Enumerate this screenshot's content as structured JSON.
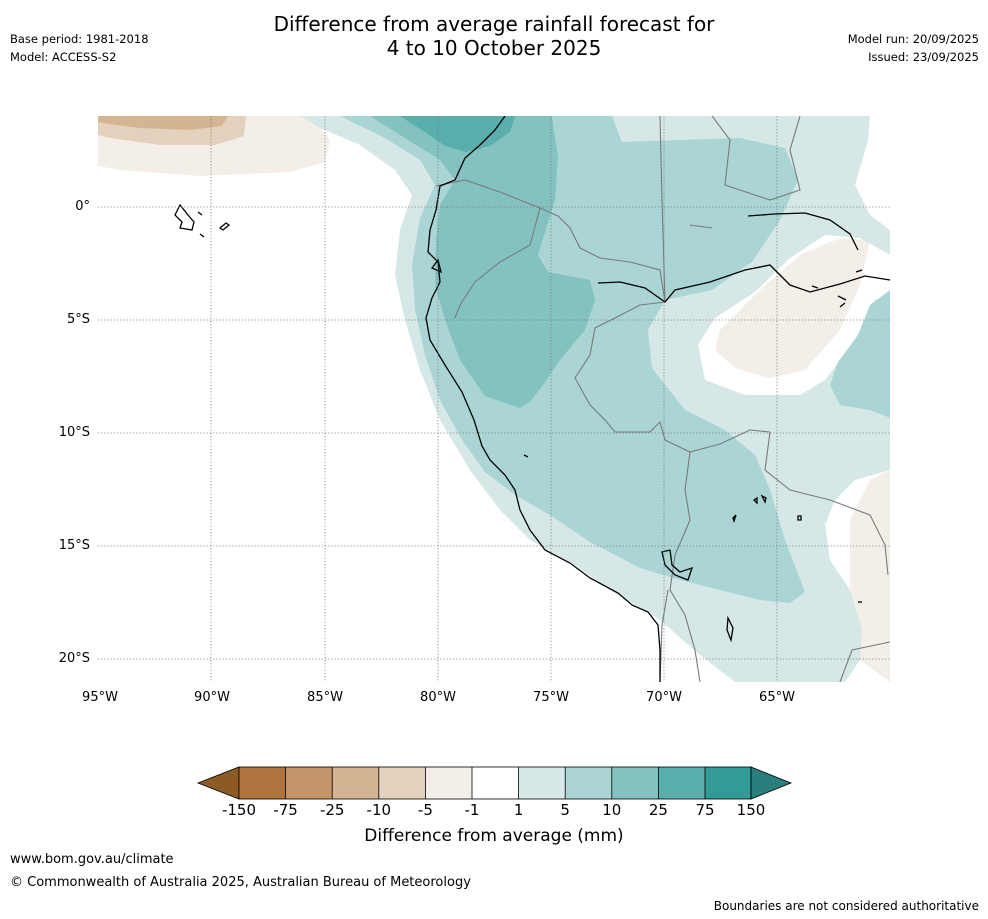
{
  "header": {
    "title_line1": "Difference from average rainfall forecast for",
    "title_line2": "4 to 10 October 2025",
    "base_period": "Base period: 1981-2018",
    "model": "Model: ACCESS-S2",
    "model_run": "Model run: 20/09/2025",
    "issued": "Issued: 23/09/2025"
  },
  "map": {
    "latitude_labels": [
      "0°",
      "5°S",
      "10°S",
      "15°S",
      "20°S"
    ],
    "longitude_labels": [
      "95°W",
      "90°W",
      "85°W",
      "80°W",
      "75°W",
      "70°W",
      "65°W"
    ]
  },
  "colorbar": {
    "title": "Difference from average (mm)",
    "tick_labels": [
      "-150",
      "-75",
      "-25",
      "-10",
      "-5",
      "-1",
      "1",
      "5",
      "10",
      "25",
      "75",
      "150"
    ],
    "colors": [
      "#8c5a24",
      "#af743d",
      "#c3956a",
      "#d4b493",
      "#e3d1bd",
      "#f3eee8",
      "#ffffff",
      "#d5e8e7",
      "#abd5d4",
      "#83c2c0",
      "#5aaeac",
      "#339a97",
      "#2a7e7b"
    ]
  },
  "footer": {
    "website": "www.bom.gov.au/climate",
    "copyright": "© Commonwealth of Australia 2025, Australian Bureau of Meteorology",
    "disclaimer": "Boundaries are not considered authoritative"
  }
}
